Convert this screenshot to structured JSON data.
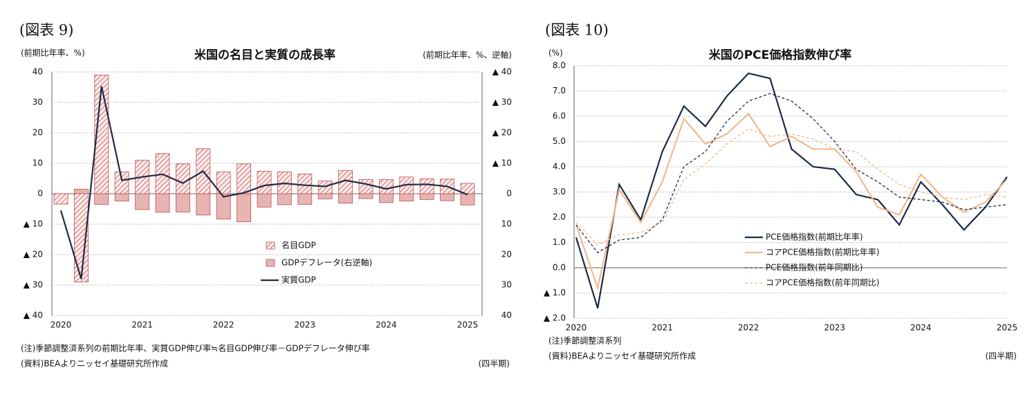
{
  "chart_data": [
    {
      "type": "bar",
      "figure_label": "(図表 9)",
      "title": "米国の名目と実質の成長率",
      "y_label": "(前期比年率、%)",
      "y2_label": "(前期比年率、%、逆軸)",
      "categories": [
        "2020",
        null,
        null,
        null,
        "2021",
        null,
        null,
        null,
        "2022",
        null,
        null,
        null,
        "2023",
        null,
        null,
        null,
        "2024",
        null,
        null,
        null,
        "2025"
      ],
      "series": [
        {
          "name": "GDPデフレータ(右逆軸)",
          "type": "bar",
          "axis": "y2",
          "color": "#e6b5b3",
          "values": [
            1.6,
            -1.5,
            3.5,
            2.4,
            5.2,
            6.1,
            6.0,
            7.0,
            8.3,
            9.2,
            4.4,
            3.6,
            3.5,
            1.7,
            3.1,
            1.6,
            2.9,
            2.4,
            1.9,
            2.3,
            3.7
          ]
        },
        {
          "name": "名目GDP",
          "type": "bar",
          "pattern": "hatch",
          "color": "#c0504d",
          "values": [
            -3.4,
            -29,
            39,
            7.2,
            11,
            13.2,
            9.8,
            14.8,
            7.2,
            9.8,
            7.4,
            7.2,
            6.5,
            4.2,
            7.6,
            4.7,
            4.7,
            5.5,
            4.9,
            4.8,
            3.4
          ]
        },
        {
          "name": "実質GDP",
          "type": "line",
          "color": "#1f2a44",
          "values": [
            -5.5,
            -28,
            35.3,
            4.4,
            5.5,
            6.4,
            3.5,
            7.4,
            -1.0,
            0.3,
            2.7,
            3.4,
            2.8,
            2.4,
            4.4,
            3.2,
            1.6,
            3.0,
            3.1,
            2.4,
            -0.3
          ]
        }
      ],
      "legend_order": [
        1,
        0,
        2
      ],
      "ylim": [
        -40,
        40
      ],
      "yticks": [
        40,
        30,
        20,
        10,
        0,
        {
          "value": -10,
          "label": "▲ 10"
        },
        {
          "value": -20,
          "label": "▲ 20"
        },
        {
          "value": -30,
          "label": "▲ 30"
        },
        {
          "value": -40,
          "label": "▲ 40"
        }
      ],
      "y2lim": [
        -40,
        40
      ],
      "y2_reversed": true,
      "y2ticks": [
        {
          "value": -40,
          "label": "▲ 40"
        },
        {
          "value": -30,
          "label": "▲ 30"
        },
        {
          "value": -20,
          "label": "▲ 20"
        },
        {
          "value": -10,
          "label": "▲ 10"
        },
        0,
        10,
        20,
        30,
        40
      ],
      "grid": true,
      "notes": [
        "(注)季節調整済系列の前期比年率、実質GDP伸び率≒名目GDP伸び率－GDPデフレータ伸び率",
        "(資料)BEAよりニッセイ基礎研究所作成"
      ],
      "x_unit": "(四半期)"
    },
    {
      "type": "line",
      "figure_label": "(図表 10)",
      "title": "米国のPCE価格指数伸び率",
      "y_label": "(%)",
      "categories": [
        "2020",
        null,
        null,
        null,
        "2021",
        null,
        null,
        null,
        "2022",
        null,
        null,
        null,
        "2023",
        null,
        null,
        null,
        "2024",
        null,
        null,
        null,
        "2025"
      ],
      "series": [
        {
          "name": "PCE価格指数(前期比年率)",
          "color": "#1b2a47",
          "dashed": false,
          "values": [
            1.2,
            -1.6,
            3.3,
            1.9,
            4.6,
            6.4,
            5.6,
            6.8,
            7.7,
            7.5,
            4.7,
            4.0,
            3.9,
            2.9,
            2.7,
            1.7,
            3.4,
            2.5,
            1.5,
            2.4,
            3.6
          ]
        },
        {
          "name": "コアPCE価格指数(前期比年率)",
          "color": "#f2b98d",
          "dashed": false,
          "values": [
            1.7,
            -0.8,
            3.1,
            1.8,
            3.4,
            5.9,
            4.9,
            5.3,
            6.1,
            4.8,
            5.2,
            4.7,
            4.7,
            3.8,
            2.4,
            2.1,
            3.7,
            2.8,
            2.2,
            2.6,
            3.5
          ]
        },
        {
          "name": "PCE価格指数(前年同期比)",
          "color": "#1b2a47",
          "dashed": true,
          "values": [
            1.7,
            0.6,
            1.1,
            1.2,
            1.9,
            4.0,
            4.6,
            5.8,
            6.6,
            6.9,
            6.6,
            5.9,
            5.0,
            3.9,
            3.4,
            2.8,
            2.7,
            2.6,
            2.3,
            2.4,
            2.5
          ]
        },
        {
          "name": "コアPCE価格指数(前年同期比)",
          "color": "#f2b98d",
          "dashed": true,
          "values": [
            1.8,
            0.9,
            1.3,
            1.4,
            1.8,
            3.5,
            4.1,
            4.9,
            5.5,
            5.2,
            5.3,
            5.1,
            4.7,
            4.6,
            3.9,
            3.3,
            3.0,
            2.8,
            2.7,
            2.9,
            2.8
          ]
        }
      ],
      "ylim": [
        -2,
        8
      ],
      "yticks": [
        {
          "value": 8,
          "label": "8.0"
        },
        {
          "value": 7,
          "label": "7.0"
        },
        {
          "value": 6,
          "label": "6.0"
        },
        {
          "value": 5,
          "label": "5.0"
        },
        {
          "value": 4,
          "label": "4.0"
        },
        {
          "value": 3,
          "label": "3.0"
        },
        {
          "value": 2,
          "label": "2.0"
        },
        {
          "value": 1,
          "label": "1.0"
        },
        {
          "value": 0,
          "label": "0.0"
        },
        {
          "value": -1,
          "label": "▲ 1.0"
        },
        {
          "value": -2,
          "label": "▲ 2.0"
        }
      ],
      "grid": true,
      "notes": [
        "(注)季節調整済系列",
        "(資料)BEAよりニッセイ基礎研究所作成"
      ],
      "x_unit": "(四半期)"
    }
  ]
}
